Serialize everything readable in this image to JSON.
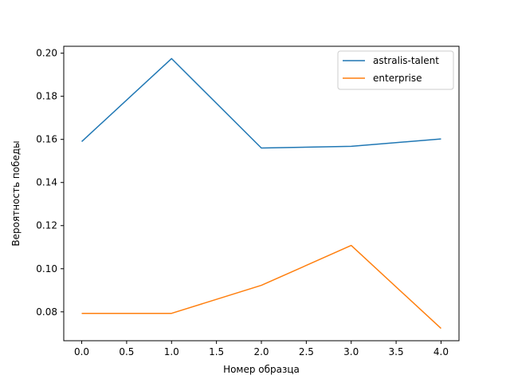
{
  "chart_data": {
    "type": "line",
    "title": "",
    "xlabel": "Номер образца",
    "ylabel": "Вероятность победы",
    "x": [
      0,
      1,
      2,
      3,
      4
    ],
    "xlim": [
      -0.2,
      4.2
    ],
    "ylim": [
      0.0666,
      0.2032
    ],
    "x_ticks": [
      0.0,
      0.5,
      1.0,
      1.5,
      2.0,
      2.5,
      3.0,
      3.5,
      4.0
    ],
    "x_tick_labels": [
      "0.0",
      "0.5",
      "1.0",
      "1.5",
      "2.0",
      "2.5",
      "3.0",
      "3.5",
      "4.0"
    ],
    "y_ticks": [
      0.08,
      0.1,
      0.12,
      0.14,
      0.16,
      0.18,
      0.2
    ],
    "y_tick_labels": [
      "0.08",
      "0.10",
      "0.12",
      "0.14",
      "0.16",
      "0.18",
      "0.20"
    ],
    "grid": false,
    "legend_position": "top-right",
    "series": [
      {
        "name": "astralis-talent",
        "color": "#1f77b4",
        "values": [
          0.159,
          0.1975,
          0.156,
          0.1568,
          0.1602
        ]
      },
      {
        "name": "enterprise",
        "color": "#ff7f0e",
        "values": [
          0.0793,
          0.0793,
          0.0923,
          0.1108,
          0.0723
        ]
      }
    ]
  }
}
